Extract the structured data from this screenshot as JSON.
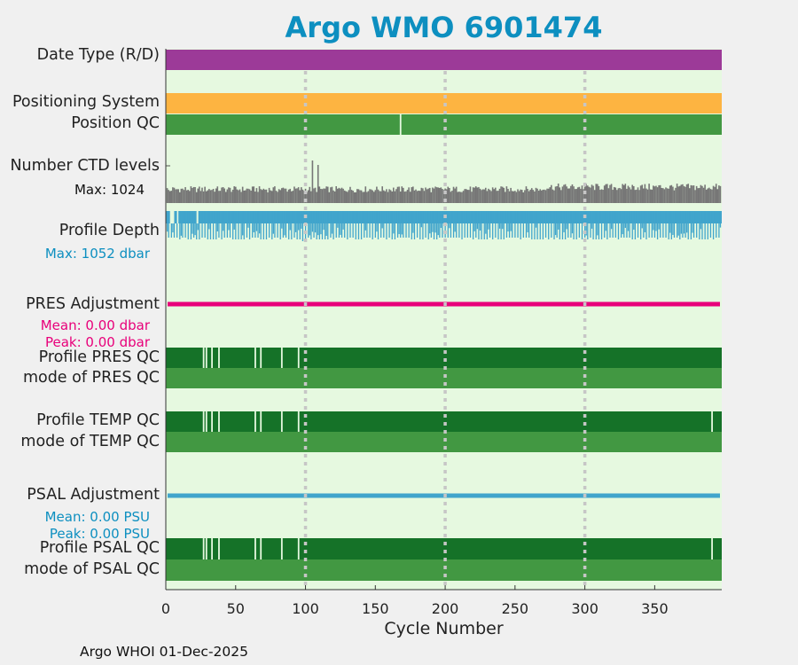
{
  "chart_data": {
    "type": "timeline",
    "title": "Argo WMO 6901474",
    "xlabel": "Cycle Number",
    "xlim": [
      0,
      398
    ],
    "x_ticks": [
      0,
      50,
      100,
      150,
      200,
      250,
      300,
      350
    ],
    "vertical_dotted_lines": [
      100,
      200,
      300
    ],
    "colors": {
      "background": "#e6f9e0",
      "date_type": "#9c3a98",
      "positioning": "#fdb441",
      "qc_good": "#429842",
      "qc_profile": "#157228",
      "ctd_levels": "#767676",
      "profile_depth": "#41a5cc",
      "pres_adjustment": "#e8007a",
      "psal_adjustment": "#41a5cc"
    },
    "rows": {
      "date_type": {
        "label": "Date Type (R/D)"
      },
      "positioning_system": {
        "label": "Positioning System"
      },
      "position_qc": {
        "label": "Position QC",
        "gap_cycles": [
          168
        ]
      },
      "ctd_levels": {
        "label": "Number CTD levels",
        "max_text": "Max: 1024",
        "spike_cycles": [
          105,
          109
        ]
      },
      "profile_depth": {
        "label": "Profile Depth",
        "max_text": "Max: 1052 dbar"
      },
      "pres_adjustment": {
        "label": "PRES Adjustment",
        "mean_text": "Mean: 0.00 dbar",
        "peak_text": "Peak: 0.00 dbar"
      },
      "profile_pres_qc": {
        "label": "Profile PRES QC",
        "gap_cycles": [
          27,
          29,
          33,
          38,
          64,
          68,
          83,
          95
        ]
      },
      "mode_pres_qc": {
        "label": "mode of PRES QC"
      },
      "profile_temp_qc": {
        "label": "Profile TEMP QC",
        "gap_cycles": [
          27,
          29,
          33,
          38,
          64,
          68,
          83,
          95,
          391
        ]
      },
      "mode_temp_qc": {
        "label": "mode of TEMP QC"
      },
      "psal_adjustment": {
        "label": "PSAL Adjustment",
        "mean_text": "Mean: 0.00 PSU",
        "peak_text": "Peak: 0.00 PSU"
      },
      "profile_psal_qc": {
        "label": "Profile PSAL QC",
        "gap_cycles": [
          27,
          29,
          33,
          38,
          64,
          68,
          83,
          95,
          391
        ]
      },
      "mode_psal_qc": {
        "label": "mode of PSAL QC"
      }
    },
    "footer": "Argo WHOI 01-Dec-2025"
  }
}
